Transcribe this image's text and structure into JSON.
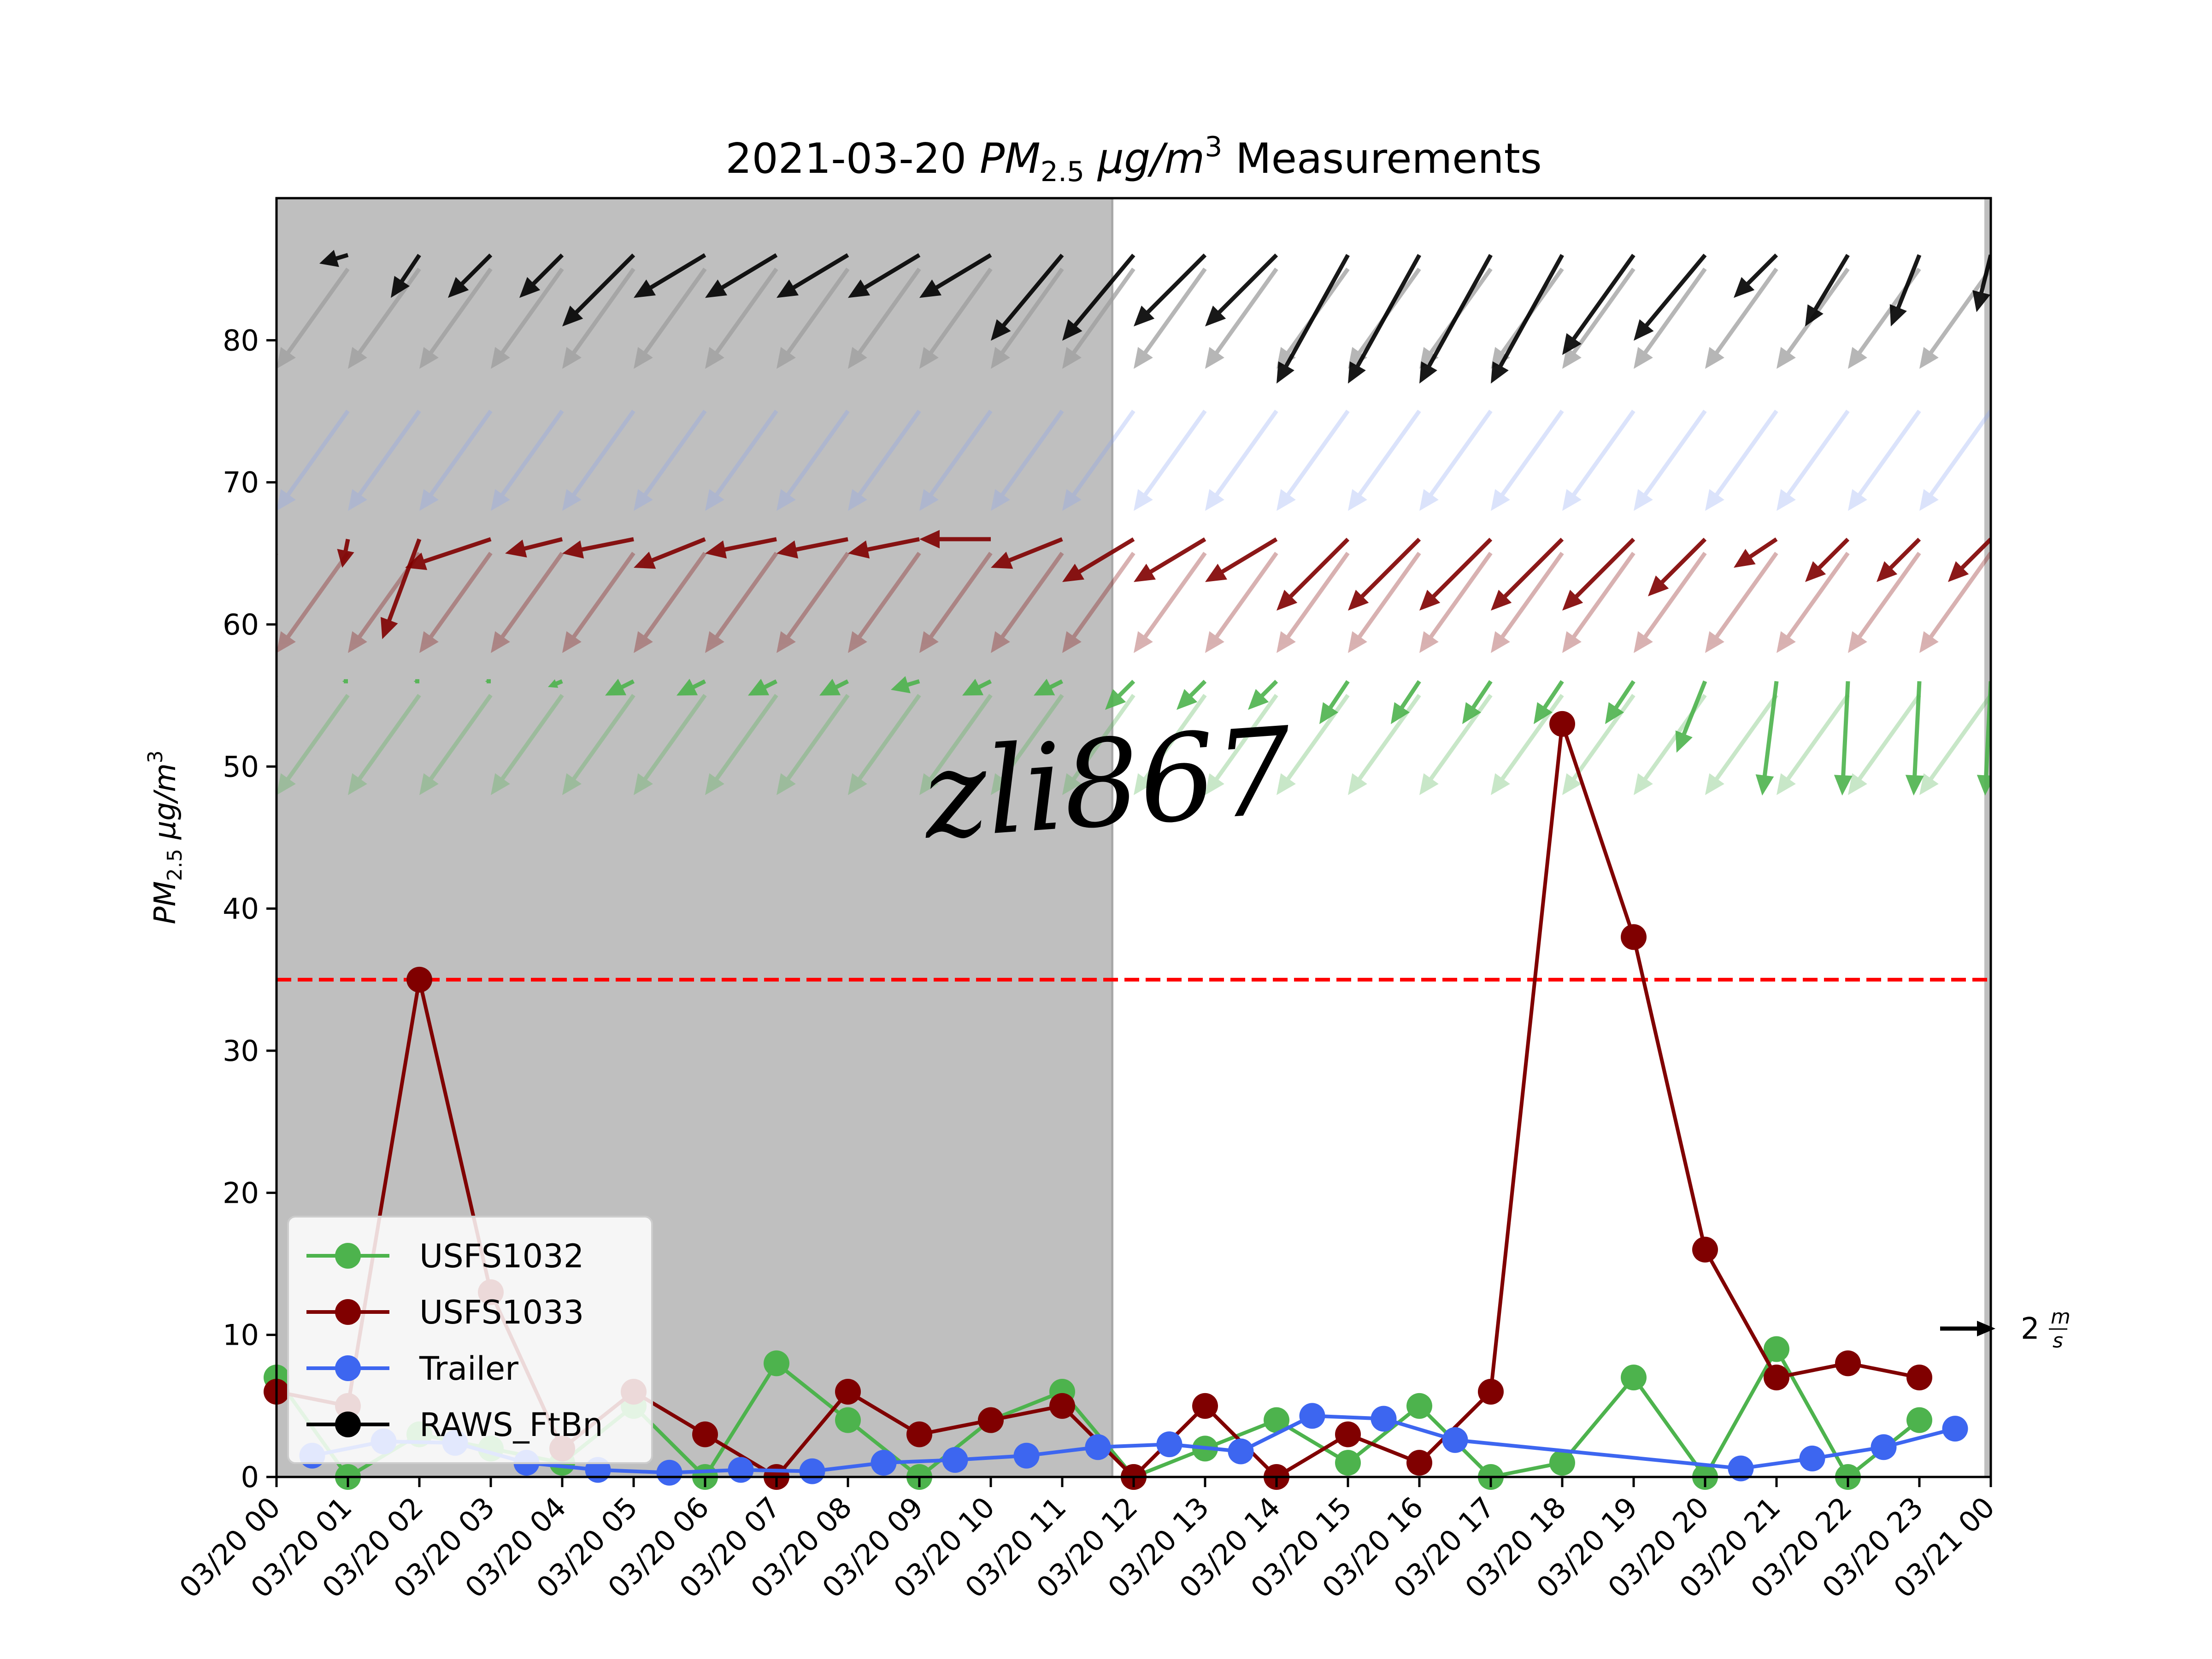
{
  "chart_data": {
    "type": "line",
    "title_prefix": "2021-03-20 ",
    "title_pm": "PM",
    "title_sub": "2.5",
    "title_units": " μg/m",
    "title_sup": "3",
    "title_suffix": " Measurements",
    "ylabel_pm": "PM",
    "ylabel_sub": "2.5",
    "ylabel_units": " μg/m",
    "ylabel_sup": "3",
    "ylim": [
      0,
      90
    ],
    "yticks": [
      0,
      10,
      20,
      30,
      40,
      50,
      60,
      70,
      80
    ],
    "xlim": [
      0,
      24
    ],
    "xtick_labels": [
      "03/20 00",
      "03/20 01",
      "03/20 02",
      "03/20 03",
      "03/20 04",
      "03/20 05",
      "03/20 06",
      "03/20 07",
      "03/20 08",
      "03/20 09",
      "03/20 10",
      "03/20 11",
      "03/20 12",
      "03/20 13",
      "03/20 14",
      "03/20 15",
      "03/20 16",
      "03/20 17",
      "03/20 18",
      "03/20 19",
      "03/20 20",
      "03/20 21",
      "03/20 22",
      "03/20 23",
      "03/21 00"
    ],
    "night_shading_until_hour": 11.7,
    "threshold": {
      "value": 35,
      "color": "#ff0000"
    },
    "legend_position": "lower-left",
    "series": [
      {
        "name": "USFS1032",
        "color": "#4db34d",
        "x": [
          0,
          1,
          2,
          3,
          4,
          5,
          6,
          7,
          8,
          9,
          10,
          11,
          12,
          13,
          14,
          15,
          16,
          17,
          18,
          19,
          20,
          21,
          22,
          23
        ],
        "y": [
          7,
          0,
          3,
          2,
          1,
          5,
          0,
          8,
          4,
          0,
          4,
          6,
          0,
          2,
          4,
          1,
          5,
          0,
          1,
          7,
          0,
          9,
          0,
          4
        ]
      },
      {
        "name": "USFS1033",
        "color": "#800000",
        "x": [
          0,
          1,
          2,
          3,
          4,
          5,
          6,
          7,
          8,
          9,
          10,
          11,
          12,
          13,
          14,
          15,
          16,
          17,
          18,
          19,
          20,
          21,
          22,
          23
        ],
        "y": [
          6,
          5,
          35,
          13,
          2,
          6,
          3,
          0,
          6,
          3,
          4,
          5,
          0,
          5,
          0,
          3,
          1,
          6,
          53,
          38,
          16,
          7,
          8,
          7
        ]
      },
      {
        "name": "Trailer",
        "color": "#3d66f0",
        "x": [
          0.5,
          1.5,
          2.5,
          3.5,
          4.5,
          5.5,
          6.5,
          7.5,
          8.5,
          9.5,
          10.5,
          11.5,
          12.5,
          13.5,
          14.5,
          15.5,
          16.5,
          20.5,
          21.5,
          22.5,
          23.5
        ],
        "y": [
          1.5,
          2.5,
          2.4,
          1.0,
          0.5,
          0.3,
          0.5,
          0.4,
          1.0,
          1.2,
          1.5,
          2.1,
          2.3,
          1.8,
          4.3,
          4.1,
          2.6,
          0.6,
          1.3,
          2.1,
          3.4
        ]
      },
      {
        "name": "RAWS_FtBn",
        "color": "#000000",
        "x": [],
        "y": []
      }
    ],
    "wind_rows": [
      {
        "series": "RAWS_FtBn",
        "y_level": 86,
        "color": "#000000",
        "arrows": [
          [
            0,
            -0.3,
            0.0
          ],
          [
            1,
            -1.0,
            0.3
          ],
          [
            2,
            -1.0,
            1.5
          ],
          [
            3,
            -1.5,
            1.5
          ],
          [
            4,
            -1.5,
            1.5
          ],
          [
            5,
            -2.5,
            2.5
          ],
          [
            6,
            -2.5,
            1.5
          ],
          [
            7,
            -2.5,
            1.5
          ],
          [
            8,
            -2.5,
            1.5
          ],
          [
            9,
            -2.5,
            1.5
          ],
          [
            10,
            -2.5,
            1.5
          ],
          [
            11,
            -2.5,
            3.0
          ],
          [
            12,
            -2.5,
            3.0
          ],
          [
            13,
            -2.5,
            2.5
          ],
          [
            14,
            -2.5,
            2.5
          ],
          [
            15,
            -2.5,
            4.5
          ],
          [
            16,
            -2.5,
            4.5
          ],
          [
            17,
            -2.5,
            4.5
          ],
          [
            18,
            -2.5,
            4.5
          ],
          [
            19,
            -2.5,
            3.5
          ],
          [
            20,
            -2.5,
            3.0
          ],
          [
            21,
            -1.5,
            1.5
          ],
          [
            22,
            -1.5,
            2.5
          ],
          [
            23,
            -1.0,
            2.5
          ],
          [
            24,
            -0.5,
            2.0
          ]
        ]
      },
      {
        "series": "Trailer",
        "y_level": 76,
        "color": "#8aa4f2",
        "arrows": [
          [
            0,
            -0.5,
            1.5
          ],
          [
            1,
            -2.5,
            3.5
          ],
          [
            2,
            -2.5,
            3.5
          ],
          [
            3,
            -2.5,
            3.5
          ],
          [
            4,
            -2.5,
            3.5
          ],
          [
            5,
            -2.5,
            3.5
          ],
          [
            6,
            -2.5,
            3.5
          ],
          [
            7,
            -2.5,
            3.5
          ],
          [
            8,
            -2.5,
            3.5
          ],
          [
            9,
            -2.5,
            3.5
          ],
          [
            10,
            -2.5,
            3.5
          ],
          [
            11,
            -2.5,
            3.5
          ],
          [
            12,
            -2.5,
            3.5
          ],
          [
            13,
            -2.5,
            3.5
          ],
          [
            14,
            -2.5,
            3.5
          ],
          [
            15,
            -2.5,
            3.5
          ],
          [
            16,
            -2.5,
            3.5
          ],
          [
            17,
            -2.5,
            3.5
          ],
          [
            18,
            -2.5,
            3.5
          ],
          [
            19,
            -2.5,
            3.5
          ],
          [
            20,
            -2.5,
            3.5
          ],
          [
            21,
            -2.5,
            3.5
          ],
          [
            22,
            -2.5,
            3.5
          ],
          [
            23,
            -2.5,
            3.5
          ],
          [
            24,
            -2.5,
            3.5
          ]
        ]
      },
      {
        "series": "USFS1033",
        "y_level": 66,
        "color": "#800000",
        "arrows": [
          [
            0,
            -0.2,
            0.0
          ],
          [
            1,
            -0.2,
            1.0
          ],
          [
            2,
            -1.3,
            3.5
          ],
          [
            3,
            -3.0,
            1.0
          ],
          [
            4,
            -2.0,
            0.5
          ],
          [
            5,
            -2.5,
            0.5
          ],
          [
            6,
            -2.5,
            1.0
          ],
          [
            7,
            -2.5,
            0.5
          ],
          [
            8,
            -2.5,
            0.5
          ],
          [
            9,
            -2.5,
            0.5
          ],
          [
            10,
            -2.5,
            0.0
          ],
          [
            11,
            -2.5,
            1.0
          ],
          [
            12,
            -2.5,
            1.5
          ],
          [
            13,
            -2.5,
            1.5
          ],
          [
            14,
            -2.5,
            1.5
          ],
          [
            15,
            -2.5,
            2.5
          ],
          [
            16,
            -2.5,
            2.5
          ],
          [
            17,
            -2.5,
            2.5
          ],
          [
            18,
            -2.5,
            2.5
          ],
          [
            19,
            -2.5,
            2.5
          ],
          [
            20,
            -2.0,
            2.0
          ],
          [
            21,
            -1.5,
            1.0
          ],
          [
            22,
            -1.5,
            1.5
          ],
          [
            23,
            -1.5,
            1.5
          ],
          [
            24,
            -1.5,
            1.5
          ]
        ]
      },
      {
        "series": "USFS1032",
        "y_level": 56,
        "color": "#4db34d",
        "arrows": [
          [
            0,
            -0.2,
            0.0
          ],
          [
            1,
            -0.2,
            0.0
          ],
          [
            2,
            -0.2,
            0.0
          ],
          [
            3,
            -0.2,
            0.0
          ],
          [
            4,
            -0.5,
            0.2
          ],
          [
            5,
            -1.0,
            0.5
          ],
          [
            6,
            -1.0,
            0.5
          ],
          [
            7,
            -1.0,
            0.5
          ],
          [
            8,
            -1.0,
            0.5
          ],
          [
            9,
            -1.0,
            0.3
          ],
          [
            10,
            -1.0,
            0.5
          ],
          [
            11,
            -1.0,
            0.5
          ],
          [
            12,
            -1.0,
            1.0
          ],
          [
            13,
            -1.0,
            1.0
          ],
          [
            14,
            -1.0,
            1.0
          ],
          [
            15,
            -1.0,
            1.5
          ],
          [
            16,
            -1.0,
            1.5
          ],
          [
            17,
            -1.0,
            1.5
          ],
          [
            18,
            -1.0,
            1.5
          ],
          [
            19,
            -1.0,
            1.5
          ],
          [
            20,
            -1.0,
            2.5
          ],
          [
            21,
            -0.5,
            4.0
          ],
          [
            22,
            -0.2,
            4.0
          ],
          [
            23,
            -0.2,
            4.0
          ],
          [
            24,
            -0.2,
            4.0
          ]
        ]
      }
    ],
    "quiver_key_label": "2",
    "quiver_key_num": "m",
    "quiver_key_den": "s",
    "watermark": "zli867"
  }
}
